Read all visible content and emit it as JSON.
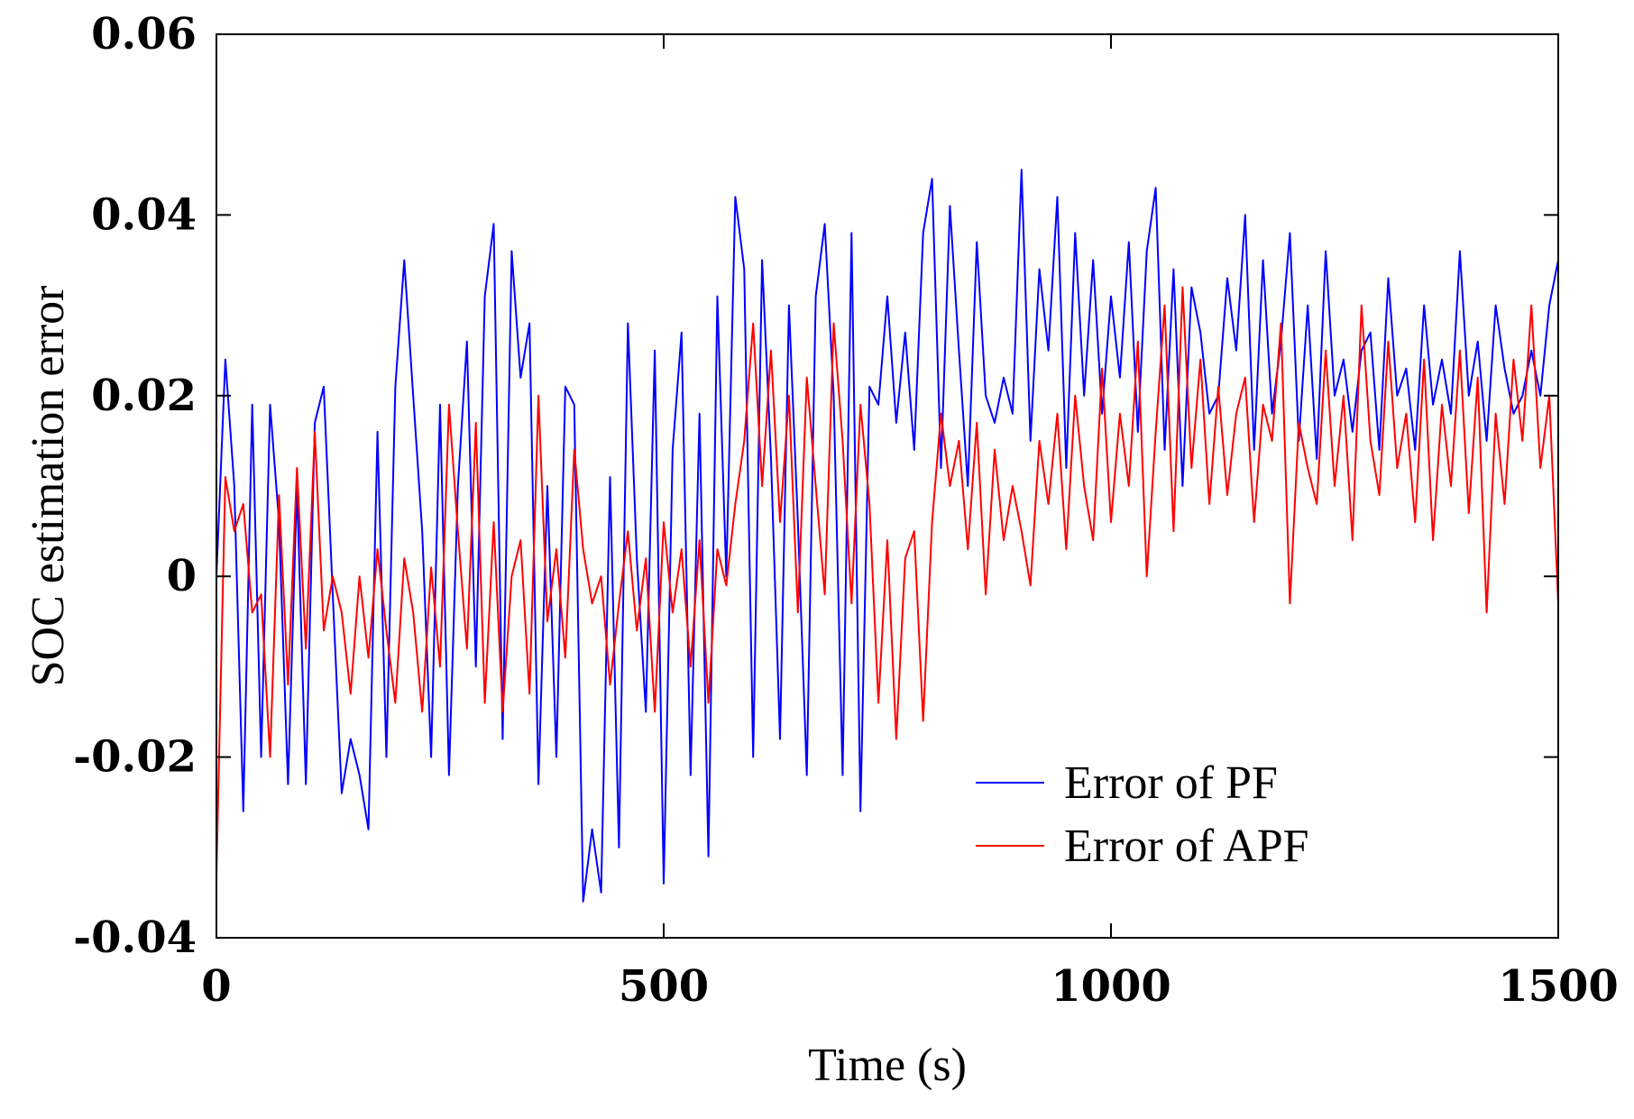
{
  "chart_data": {
    "type": "line",
    "title": "",
    "xlabel": "Time (s)",
    "ylabel": "SOC estimation error",
    "xlim": [
      0,
      1500
    ],
    "ylim": [
      -0.04,
      0.06
    ],
    "x_ticks": [
      0,
      500,
      1000,
      1500
    ],
    "x_tick_labels": [
      "0",
      "500",
      "1000",
      "1500"
    ],
    "y_ticks": [
      -0.04,
      -0.02,
      0,
      0.02,
      0.04,
      0.06
    ],
    "y_tick_labels": [
      "-0.04",
      "-0.02",
      "0",
      "0.02",
      "0.04",
      "0.06"
    ],
    "grid": false,
    "legend_position": "bottom-right",
    "series": [
      {
        "name": "Error of PF",
        "color": "#0000ff",
        "x": [
          0,
          10,
          20,
          30,
          40,
          50,
          60,
          70,
          80,
          90,
          100,
          110,
          120,
          130,
          140,
          150,
          160,
          170,
          180,
          190,
          200,
          210,
          220,
          230,
          240,
          250,
          260,
          270,
          280,
          290,
          300,
          310,
          320,
          330,
          340,
          350,
          360,
          370,
          380,
          390,
          400,
          410,
          420,
          430,
          440,
          450,
          460,
          470,
          480,
          490,
          500,
          510,
          520,
          530,
          540,
          550,
          560,
          570,
          580,
          590,
          600,
          610,
          620,
          630,
          640,
          650,
          660,
          670,
          680,
          690,
          700,
          710,
          720,
          730,
          740,
          750,
          760,
          770,
          780,
          790,
          800,
          810,
          820,
          830,
          840,
          850,
          860,
          870,
          880,
          890,
          900,
          910,
          920,
          930,
          940,
          950,
          960,
          970,
          980,
          990,
          1000,
          1010,
          1020,
          1030,
          1040,
          1050,
          1060,
          1070,
          1080,
          1090,
          1100,
          1110,
          1120,
          1130,
          1140,
          1150,
          1160,
          1170,
          1180,
          1190,
          1200,
          1210,
          1220,
          1230,
          1240,
          1250,
          1260,
          1270,
          1280,
          1290,
          1300,
          1310,
          1320,
          1330,
          1340,
          1350,
          1360,
          1370,
          1380,
          1390,
          1400,
          1410,
          1420,
          1430,
          1440,
          1450,
          1460,
          1470,
          1480,
          1490,
          1500
        ],
        "y": [
          0.0,
          0.024,
          0.01,
          -0.026,
          0.019,
          -0.02,
          0.019,
          0.006,
          -0.023,
          0.01,
          -0.023,
          0.017,
          0.021,
          -0.002,
          -0.024,
          -0.018,
          -0.022,
          -0.028,
          0.016,
          -0.02,
          0.021,
          0.035,
          0.02,
          0.005,
          -0.02,
          0.019,
          -0.022,
          0.01,
          0.026,
          -0.01,
          0.031,
          0.039,
          -0.018,
          0.036,
          0.022,
          0.028,
          -0.023,
          0.01,
          -0.02,
          0.021,
          0.019,
          -0.036,
          -0.028,
          -0.035,
          0.011,
          -0.03,
          0.028,
          0.002,
          -0.015,
          0.025,
          -0.034,
          0.014,
          0.027,
          -0.022,
          0.018,
          -0.031,
          0.031,
          0.0,
          0.042,
          0.034,
          -0.02,
          0.035,
          0.013,
          -0.018,
          0.03,
          0.006,
          -0.022,
          0.031,
          0.039,
          0.02,
          -0.022,
          0.038,
          -0.026,
          0.021,
          0.019,
          0.031,
          0.017,
          0.027,
          0.014,
          0.038,
          0.044,
          0.012,
          0.041,
          0.025,
          0.01,
          0.037,
          0.02,
          0.017,
          0.022,
          0.018,
          0.045,
          0.015,
          0.034,
          0.025,
          0.042,
          0.012,
          0.038,
          0.02,
          0.035,
          0.018,
          0.031,
          0.022,
          0.037,
          0.016,
          0.036,
          0.043,
          0.014,
          0.034,
          0.01,
          0.032,
          0.027,
          0.018,
          0.02,
          0.033,
          0.025,
          0.04,
          0.014,
          0.035,
          0.018,
          0.026,
          0.038,
          0.015,
          0.03,
          0.013,
          0.036,
          0.02,
          0.024,
          0.016,
          0.025,
          0.027,
          0.014,
          0.033,
          0.02,
          0.023,
          0.014,
          0.03,
          0.019,
          0.024,
          0.018,
          0.036,
          0.02,
          0.026,
          0.015,
          0.03,
          0.023,
          0.018,
          0.02,
          0.025,
          0.02,
          0.03,
          0.035
        ]
      },
      {
        "name": "Error of APF",
        "color": "#ff0000",
        "x": [
          0,
          10,
          20,
          30,
          40,
          50,
          60,
          70,
          80,
          90,
          100,
          110,
          120,
          130,
          140,
          150,
          160,
          170,
          180,
          190,
          200,
          210,
          220,
          230,
          240,
          250,
          260,
          270,
          280,
          290,
          300,
          310,
          320,
          330,
          340,
          350,
          360,
          370,
          380,
          390,
          400,
          410,
          420,
          430,
          440,
          450,
          460,
          470,
          480,
          490,
          500,
          510,
          520,
          530,
          540,
          550,
          560,
          570,
          580,
          590,
          600,
          610,
          620,
          630,
          640,
          650,
          660,
          670,
          680,
          690,
          700,
          710,
          720,
          730,
          740,
          750,
          760,
          770,
          780,
          790,
          800,
          810,
          820,
          830,
          840,
          850,
          860,
          870,
          880,
          890,
          900,
          910,
          920,
          930,
          940,
          950,
          960,
          970,
          980,
          990,
          1000,
          1010,
          1020,
          1030,
          1040,
          1050,
          1060,
          1070,
          1080,
          1090,
          1100,
          1110,
          1120,
          1130,
          1140,
          1150,
          1160,
          1170,
          1180,
          1190,
          1200,
          1210,
          1220,
          1230,
          1240,
          1250,
          1260,
          1270,
          1280,
          1290,
          1300,
          1310,
          1320,
          1330,
          1340,
          1350,
          1360,
          1370,
          1380,
          1390,
          1400,
          1410,
          1420,
          1430,
          1440,
          1450,
          1460,
          1470,
          1480,
          1490,
          1500
        ],
        "y": [
          -0.033,
          0.011,
          0.005,
          0.008,
          -0.004,
          -0.002,
          -0.02,
          0.009,
          -0.012,
          0.012,
          -0.008,
          0.016,
          -0.006,
          0.0,
          -0.004,
          -0.013,
          0.0,
          -0.009,
          0.003,
          -0.006,
          -0.014,
          0.002,
          -0.004,
          -0.015,
          0.001,
          -0.01,
          0.019,
          0.005,
          -0.008,
          0.017,
          -0.014,
          0.006,
          -0.015,
          0.0,
          0.004,
          -0.013,
          0.02,
          -0.005,
          0.003,
          -0.009,
          0.014,
          0.003,
          -0.003,
          0.0,
          -0.012,
          -0.003,
          0.005,
          -0.006,
          0.002,
          -0.015,
          0.006,
          -0.004,
          0.003,
          -0.01,
          0.004,
          -0.014,
          0.003,
          -0.001,
          0.008,
          0.015,
          0.028,
          0.01,
          0.025,
          0.006,
          0.02,
          -0.004,
          0.022,
          0.01,
          -0.002,
          0.028,
          0.015,
          -0.003,
          0.019,
          0.008,
          -0.014,
          0.004,
          -0.018,
          0.002,
          0.005,
          -0.016,
          0.006,
          0.018,
          0.01,
          0.015,
          0.003,
          0.017,
          -0.002,
          0.014,
          0.004,
          0.01,
          0.005,
          -0.001,
          0.015,
          0.008,
          0.018,
          0.003,
          0.02,
          0.01,
          0.004,
          0.023,
          0.006,
          0.018,
          0.01,
          0.026,
          0.0,
          0.016,
          0.03,
          0.005,
          0.032,
          0.012,
          0.024,
          0.008,
          0.021,
          0.009,
          0.018,
          0.022,
          0.006,
          0.019,
          0.015,
          0.028,
          -0.003,
          0.017,
          0.012,
          0.008,
          0.025,
          0.01,
          0.02,
          0.004,
          0.03,
          0.015,
          0.009,
          0.026,
          0.012,
          0.018,
          0.006,
          0.024,
          0.004,
          0.019,
          0.01,
          0.025,
          0.007,
          0.022,
          -0.004,
          0.018,
          0.008,
          0.024,
          0.015,
          0.03,
          0.012,
          0.02,
          -0.003
        ]
      }
    ]
  }
}
